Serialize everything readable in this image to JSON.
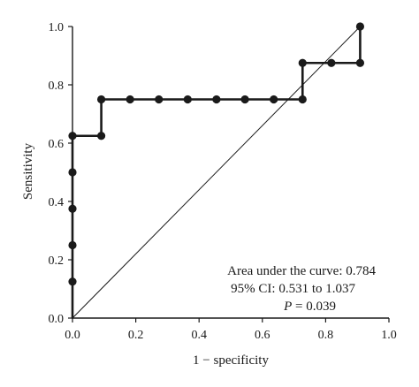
{
  "chart_data": {
    "type": "line",
    "xlabel": "1 − specificity",
    "ylabel": "Sensitivity",
    "xlim": [
      0.0,
      1.0
    ],
    "ylim": [
      0.0,
      1.0
    ],
    "x_ticks": [
      "0.0",
      "0.2",
      "0.4",
      "0.6",
      "0.8",
      "1.0"
    ],
    "y_ticks": [
      "0.0",
      "0.2",
      "0.4",
      "0.6",
      "0.8",
      "1.0"
    ],
    "grid": false,
    "series": [
      {
        "style": "step",
        "color": "#1a1a1a",
        "x": [
          0.0,
          0.0,
          0.0,
          0.0,
          0.0,
          0.0,
          0.091,
          0.091,
          0.182,
          0.273,
          0.364,
          0.455,
          0.545,
          0.636,
          0.727,
          0.727,
          0.818,
          0.909,
          0.909
        ],
        "y": [
          0.0,
          0.125,
          0.25,
          0.375,
          0.5,
          0.625,
          0.625,
          0.75,
          0.75,
          0.75,
          0.75,
          0.75,
          0.75,
          0.75,
          0.75,
          0.875,
          0.875,
          0.875,
          1.0
        ]
      },
      {
        "style": "reference",
        "color": "#1a1a1a",
        "x": [
          0.0,
          0.909
        ],
        "y": [
          0.0,
          1.0
        ]
      }
    ],
    "points": {
      "color": "#1a1a1a",
      "x": [
        0.0,
        0.0,
        0.0,
        0.0,
        0.0,
        0.091,
        0.091,
        0.182,
        0.273,
        0.364,
        0.455,
        0.545,
        0.636,
        0.727,
        0.727,
        0.818,
        0.909,
        0.909
      ],
      "y": [
        0.125,
        0.25,
        0.375,
        0.5,
        0.625,
        0.625,
        0.75,
        0.75,
        0.75,
        0.75,
        0.75,
        0.75,
        0.75,
        0.75,
        0.875,
        0.875,
        0.875,
        1.0
      ]
    },
    "annotations": {
      "auc": "Area under the curve: 0.784",
      "ci": "95% CI: 0.531 to 1.037",
      "p_label": "P",
      "p_value": " = 0.039"
    }
  }
}
